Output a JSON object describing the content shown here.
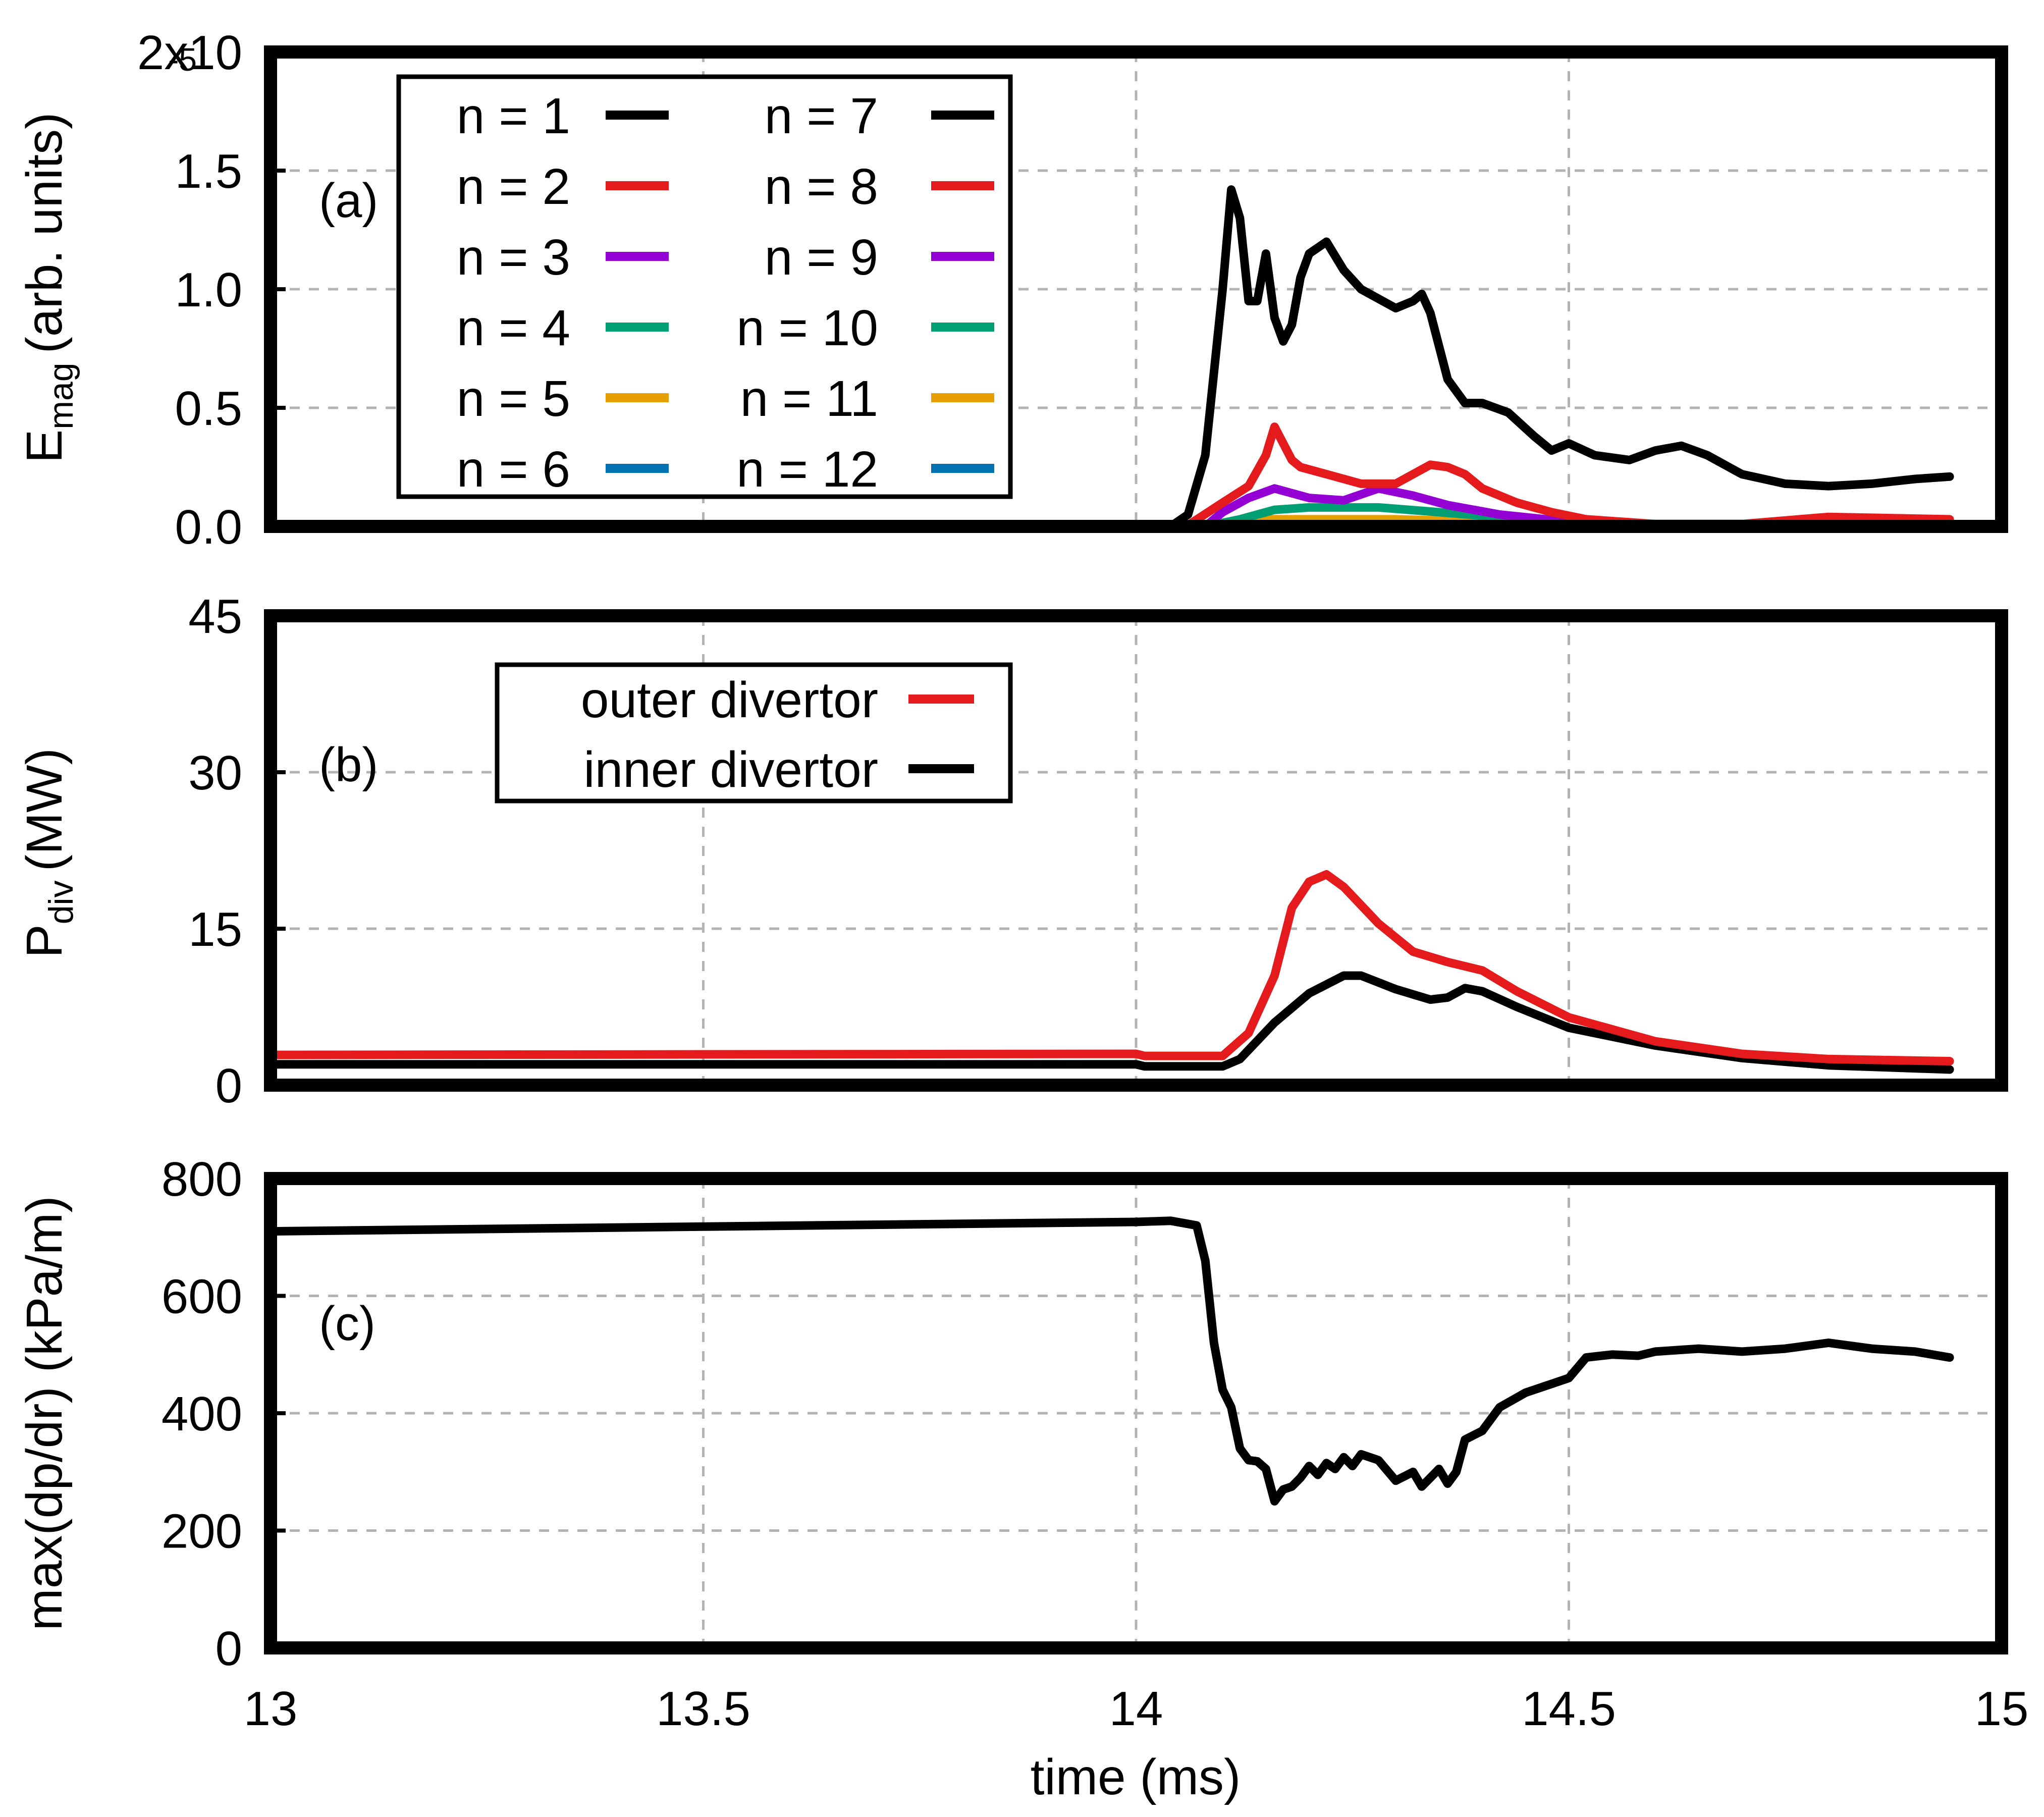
{
  "colors": {
    "n1": "#000000",
    "n2": "#e41a1c",
    "n3": "#9400d3",
    "n4": "#009e73",
    "n5": "#e69f00",
    "n6": "#0072b2",
    "outer": "#e41a1c",
    "inner": "#000000"
  },
  "chart_data": [
    {
      "type": "line",
      "panel_label": "(a)",
      "ylabel_main": "E",
      "ylabel_sub": "mag",
      "ylabel_units": "(arb. units)",
      "xlim": [
        13,
        15
      ],
      "ylim": [
        0,
        2e-05
      ],
      "y_ticks": [
        0,
        5e-06,
        1e-05,
        1.5e-05,
        2e-05
      ],
      "y_tick_labels": [
        "0.0",
        "0.5",
        "1.0",
        "1.5",
        "2x10"
      ],
      "y_top_exponent": "-5",
      "grid": true,
      "legend_placement": "top-left",
      "legend": [
        {
          "label": "n =  1",
          "color": "#000000"
        },
        {
          "label": "n =  2",
          "color": "#e41a1c"
        },
        {
          "label": "n =  3",
          "color": "#9400d3"
        },
        {
          "label": "n =  4",
          "color": "#009e73"
        },
        {
          "label": "n =  5",
          "color": "#e69f00"
        },
        {
          "label": "n =  6",
          "color": "#0072b2"
        },
        {
          "label": "n =  7",
          "color": "#000000"
        },
        {
          "label": "n =  8",
          "color": "#e41a1c"
        },
        {
          "label": "n =  9",
          "color": "#9400d3"
        },
        {
          "label": "n = 10",
          "color": "#009e73"
        },
        {
          "label": "n = 11",
          "color": "#e69f00"
        },
        {
          "label": "n = 12",
          "color": "#0072b2"
        }
      ],
      "series": [
        {
          "name": "n = 6",
          "color": "#0072b2",
          "x": [
            13.0,
            14.0,
            14.08,
            14.1,
            14.15,
            14.2,
            14.3,
            14.4,
            14.5,
            14.94
          ],
          "y": [
            0,
            0,
            0,
            1e-07,
            2e-07,
            2e-07,
            2e-07,
            1e-07,
            0,
            0
          ]
        },
        {
          "name": "n = 5",
          "color": "#e69f00",
          "x": [
            13.0,
            14.0,
            14.08,
            14.1,
            14.15,
            14.2,
            14.3,
            14.4,
            14.5,
            14.94
          ],
          "y": [
            0,
            0,
            0,
            1e-07,
            3e-07,
            3e-07,
            3e-07,
            2e-07,
            5e-08,
            0
          ]
        },
        {
          "name": "n = 4",
          "color": "#009e73",
          "x": [
            13.0,
            14.0,
            14.08,
            14.12,
            14.16,
            14.2,
            14.28,
            14.35,
            14.45,
            14.55,
            14.94
          ],
          "y": [
            0,
            0,
            0,
            3e-07,
            7e-07,
            8e-07,
            8e-07,
            6e-07,
            3e-07,
            1e-07,
            0
          ]
        },
        {
          "name": "n = 3",
          "color": "#9400d3",
          "x": [
            13.0,
            14.0,
            14.08,
            14.1,
            14.13,
            14.16,
            14.2,
            14.24,
            14.28,
            14.32,
            14.36,
            14.42,
            14.5,
            14.6,
            14.94
          ],
          "y": [
            0,
            0,
            0,
            6e-07,
            1.2e-06,
            1.6e-06,
            1.2e-06,
            1.1e-06,
            1.6e-06,
            1.3e-06,
            9e-07,
            5e-07,
            2e-07,
            1e-07,
            1e-07
          ]
        },
        {
          "name": "n = 2",
          "color": "#e41a1c",
          "x": [
            13.0,
            14.0,
            14.06,
            14.1,
            14.13,
            14.15,
            14.16,
            14.18,
            14.19,
            14.22,
            14.26,
            14.3,
            14.32,
            14.34,
            14.36,
            14.38,
            14.4,
            14.44,
            14.48,
            14.52,
            14.56,
            14.6,
            14.7,
            14.8,
            14.94
          ],
          "y": [
            0,
            0,
            5e-08,
            1e-06,
            1.7e-06,
            3e-06,
            4.2e-06,
            2.8e-06,
            2.5e-06,
            2.2e-06,
            1.8e-06,
            1.8e-06,
            2.2e-06,
            2.6e-06,
            2.5e-06,
            2.2e-06,
            1.6e-06,
            1e-06,
            6e-07,
            3e-07,
            2e-07,
            1e-07,
            1e-07,
            4e-07,
            3e-07
          ]
        },
        {
          "name": "n = 1",
          "color": "#000000",
          "x": [
            13.0,
            14.0,
            14.04,
            14.06,
            14.08,
            14.1,
            14.11,
            14.12,
            14.13,
            14.14,
            14.15,
            14.16,
            14.17,
            14.18,
            14.19,
            14.2,
            14.22,
            14.24,
            14.26,
            14.28,
            14.3,
            14.32,
            14.33,
            14.34,
            14.36,
            14.38,
            14.4,
            14.43,
            14.46,
            14.48,
            14.5,
            14.53,
            14.57,
            14.6,
            14.63,
            14.66,
            14.7,
            14.75,
            14.8,
            14.85,
            14.9,
            14.94
          ],
          "y": [
            0,
            0,
            0,
            5e-07,
            3e-06,
            1e-05,
            1.42e-05,
            1.3e-05,
            9.5e-06,
            9.5e-06,
            1.15e-05,
            8.8e-06,
            7.8e-06,
            8.5e-06,
            1.05e-05,
            1.15e-05,
            1.2e-05,
            1.08e-05,
            1e-05,
            9.6e-06,
            9.2e-06,
            9.5e-06,
            9.8e-06,
            9e-06,
            6.2e-06,
            5.2e-06,
            5.2e-06,
            4.8e-06,
            3.8e-06,
            3.2e-06,
            3.5e-06,
            3e-06,
            2.8e-06,
            3.2e-06,
            3.4e-06,
            3e-06,
            2.2e-06,
            1.8e-06,
            1.7e-06,
            1.8e-06,
            2e-06,
            2.1e-06
          ]
        }
      ]
    },
    {
      "type": "line",
      "panel_label": "(b)",
      "ylabel_main": "P",
      "ylabel_sub": "div",
      "ylabel_units": "(MW)",
      "xlim": [
        13,
        15
      ],
      "ylim": [
        0,
        45
      ],
      "y_ticks": [
        0,
        15,
        30,
        45
      ],
      "y_tick_labels": [
        "0",
        "15",
        "30",
        "45"
      ],
      "grid": true,
      "legend_placement": "top-left",
      "legend": [
        {
          "label": "outer divertor",
          "color": "#e41a1c"
        },
        {
          "label": "inner divertor",
          "color": "#000000"
        }
      ],
      "series": [
        {
          "name": "inner divertor",
          "color": "#000000",
          "x": [
            13.0,
            14.0,
            14.01,
            14.1,
            14.12,
            14.16,
            14.2,
            14.24,
            14.26,
            14.3,
            14.34,
            14.36,
            14.38,
            14.4,
            14.44,
            14.5,
            14.6,
            14.7,
            14.8,
            14.94
          ],
          "y": [
            2.0,
            2.0,
            1.8,
            1.8,
            2.5,
            6.0,
            8.8,
            10.5,
            10.5,
            9.2,
            8.2,
            8.4,
            9.3,
            9.0,
            7.5,
            5.5,
            3.8,
            2.6,
            1.9,
            1.5
          ]
        },
        {
          "name": "outer divertor",
          "color": "#e41a1c",
          "x": [
            13.0,
            14.0,
            14.01,
            14.1,
            14.13,
            14.16,
            14.18,
            14.2,
            14.22,
            14.24,
            14.28,
            14.32,
            14.36,
            14.4,
            14.44,
            14.5,
            14.6,
            14.7,
            14.8,
            14.94
          ],
          "y": [
            2.9,
            3.0,
            2.8,
            2.8,
            5.0,
            10.5,
            17.0,
            19.5,
            20.2,
            19.0,
            15.5,
            12.8,
            11.8,
            11.0,
            9.0,
            6.5,
            4.2,
            3.0,
            2.5,
            2.3
          ]
        }
      ]
    },
    {
      "type": "line",
      "panel_label": "(c)",
      "ylabel": "max(dp/dr) (kPa/m)",
      "xlabel": "time (ms)",
      "xlim": [
        13,
        15
      ],
      "ylim": [
        0,
        800
      ],
      "x_ticks": [
        13,
        13.5,
        14,
        14.5,
        15
      ],
      "x_tick_labels": [
        "13",
        "13.5",
        "14",
        "14.5",
        "15"
      ],
      "y_ticks": [
        0,
        200,
        400,
        600,
        800
      ],
      "y_tick_labels": [
        "0",
        "200",
        "400",
        "600",
        "800"
      ],
      "grid": true,
      "series": [
        {
          "name": "max(dp/dr)",
          "color": "#000000",
          "x": [
            13.0,
            13.5,
            14.0,
            14.04,
            14.07,
            14.08,
            14.09,
            14.1,
            14.11,
            14.12,
            14.13,
            14.14,
            14.15,
            14.16,
            14.17,
            14.18,
            14.19,
            14.2,
            14.21,
            14.22,
            14.23,
            14.24,
            14.25,
            14.26,
            14.27,
            14.28,
            14.3,
            14.32,
            14.33,
            14.34,
            14.35,
            14.36,
            14.37,
            14.38,
            14.4,
            14.42,
            14.45,
            14.48,
            14.5,
            14.52,
            14.55,
            14.58,
            14.6,
            14.65,
            14.7,
            14.75,
            14.8,
            14.85,
            14.9,
            14.94
          ],
          "y": [
            710,
            718,
            726,
            728,
            720,
            660,
            520,
            440,
            410,
            340,
            320,
            318,
            305,
            250,
            270,
            275,
            290,
            310,
            295,
            315,
            305,
            325,
            310,
            330,
            325,
            320,
            285,
            300,
            275,
            290,
            305,
            280,
            300,
            355,
            370,
            410,
            435,
            450,
            460,
            495,
            500,
            498,
            505,
            510,
            505,
            510,
            520,
            510,
            505,
            495
          ]
        }
      ]
    }
  ]
}
